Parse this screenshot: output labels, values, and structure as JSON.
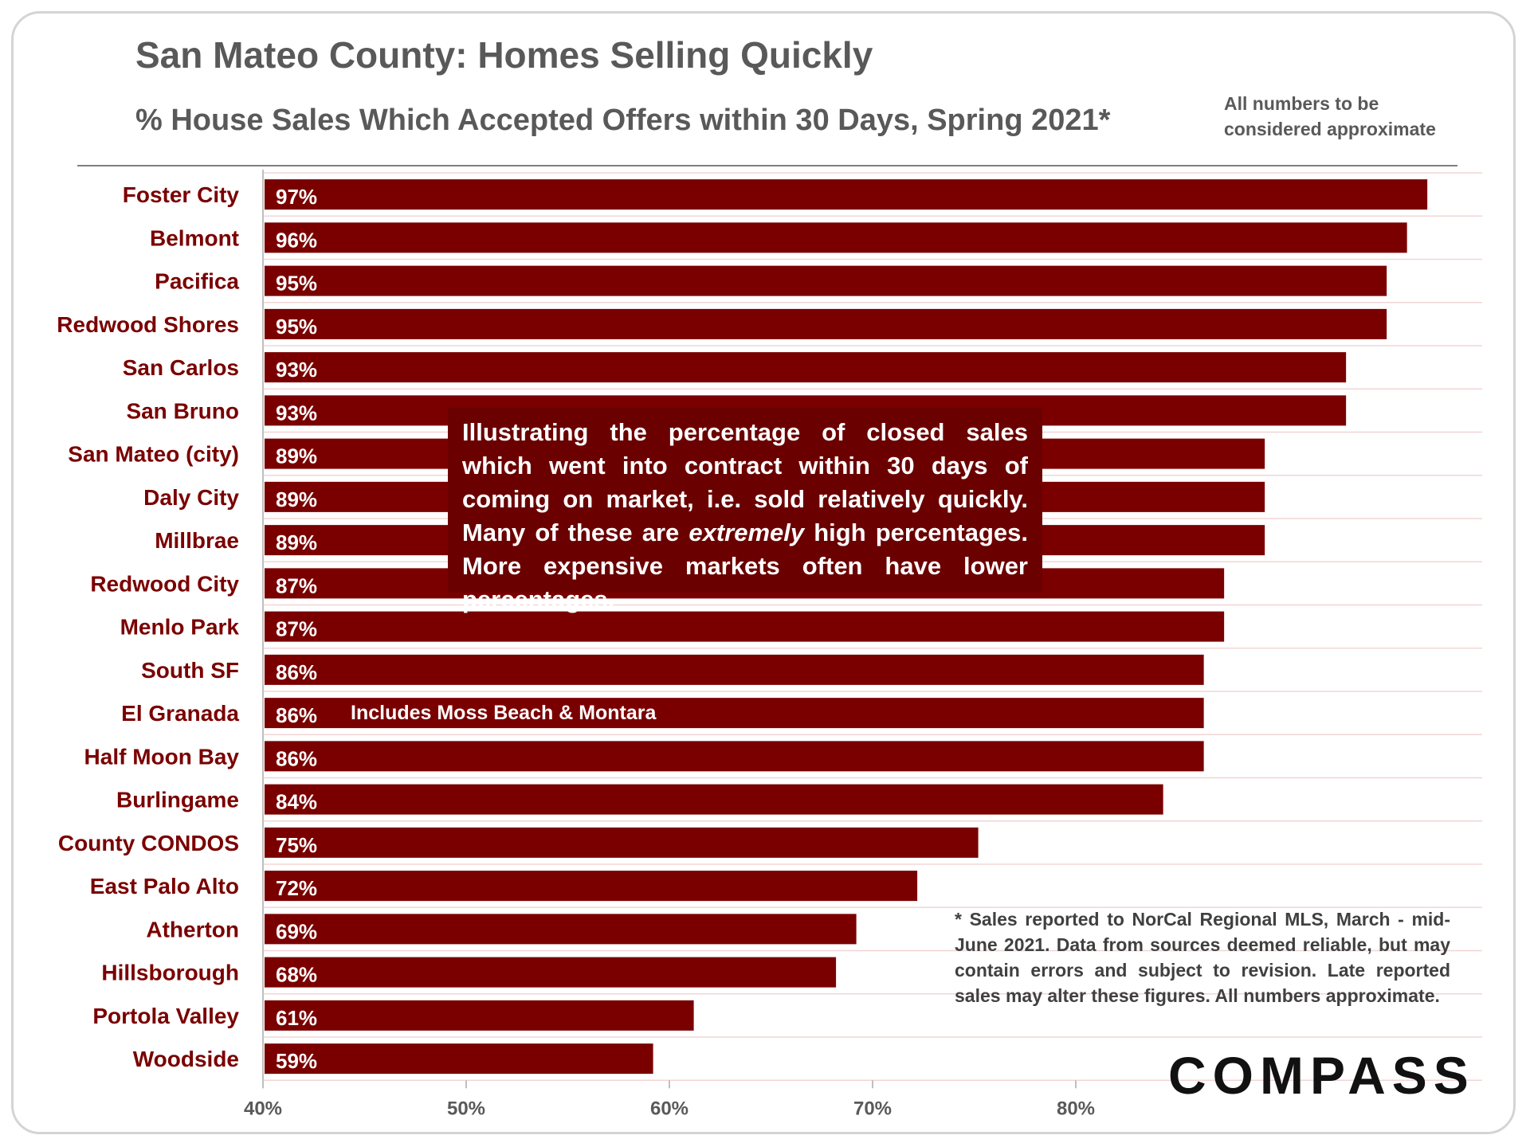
{
  "header": {
    "title": "San Mateo County: Homes Selling Quickly",
    "subtitle": "% House Sales Which Accepted Offers within 30 Days, Spring 2021*",
    "approx_note": "All numbers to be considered approximate"
  },
  "callout": {
    "text_before": "Illustrating the percentage of closed sales which went into contract within 30 days of coming on market, i.e. sold relatively quickly. Many of these are ",
    "emphasis": "extremely",
    "text_after": " high percentages. More expensive markets often have lower percentages."
  },
  "source_note": "* Sales reported to NorCal Regional MLS, March - mid-June 2021. Data from sources deemed reliable, but may contain errors and subject to revision. Late reported sales may alter these figures. All numbers approximate.",
  "logo": "COMPASS",
  "colors": {
    "bar": "#7a0000",
    "callout_bg": "#6b0000",
    "label": "#7a0000",
    "grid": "#f2d6d6"
  },
  "chart_data": {
    "type": "bar",
    "orientation": "horizontal",
    "categories": [
      "Foster City",
      "Belmont",
      "Pacifica",
      "Redwood Shores",
      "San Carlos",
      "San Bruno",
      "San Mateo (city)",
      "Daly City",
      "Millbrae",
      "Redwood City",
      "Menlo Park",
      "South SF",
      "El Granada",
      "Half Moon Bay",
      "Burlingame",
      "County CONDOS",
      "East Palo Alto",
      "Atherton",
      "Hillsborough",
      "Portola Valley",
      "Woodside"
    ],
    "values": [
      97.3,
      96.3,
      95.3,
      95.3,
      93.3,
      93.3,
      89.3,
      89.3,
      89.3,
      87.3,
      87.3,
      86.3,
      86.3,
      86.3,
      84.3,
      75.2,
      72.2,
      69.2,
      68.2,
      61.2,
      59.2
    ],
    "data_labels": [
      "97%",
      "96%",
      "95%",
      "95%",
      "93%",
      "93%",
      "89%",
      "89%",
      "89%",
      "87%",
      "87%",
      "86%",
      "86%",
      "86%",
      "84%",
      "75%",
      "72%",
      "69%",
      "68%",
      "61%",
      "59%"
    ],
    "xlim": [
      40,
      100
    ],
    "x_ticks": [
      40,
      50,
      60,
      70,
      80
    ],
    "x_tick_labels": [
      "40%",
      "50%",
      "60%",
      "70%",
      "80%"
    ],
    "grid": true,
    "legend": "none",
    "annotations": [
      {
        "category": "El Granada",
        "text": "Includes Moss Beach & Montara"
      }
    ]
  }
}
